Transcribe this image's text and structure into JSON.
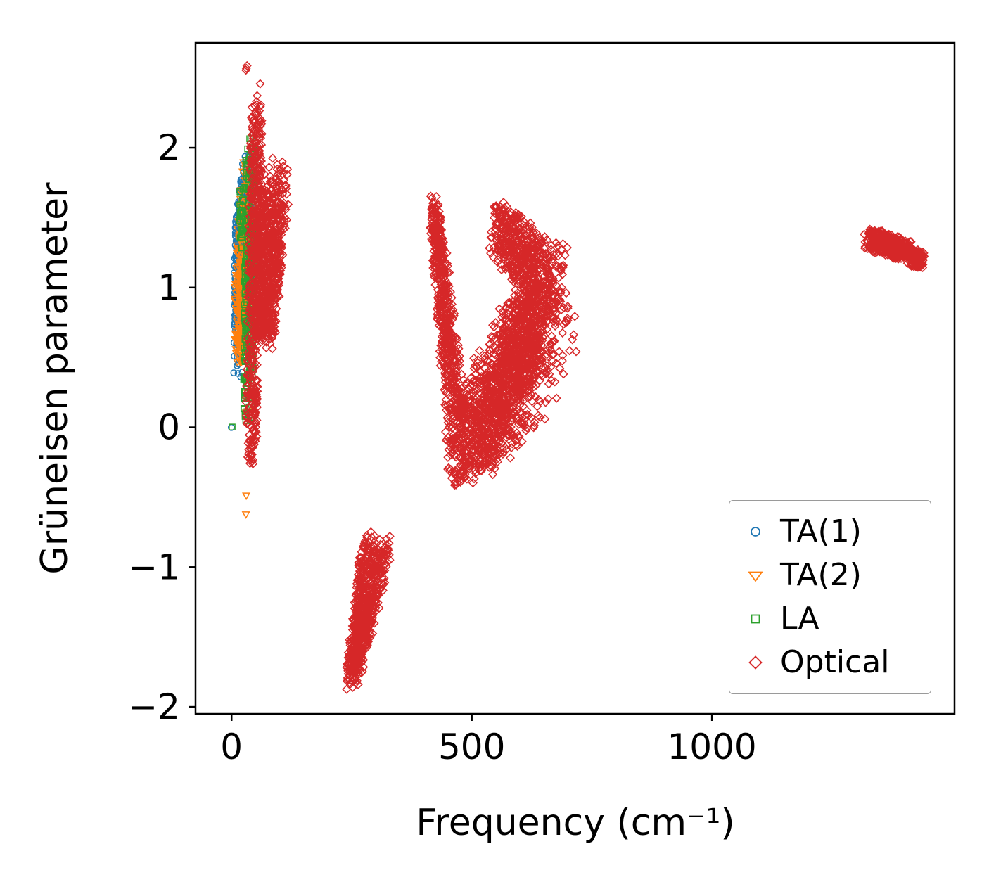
{
  "chart_data": {
    "type": "scatter",
    "title": "",
    "xlabel": "Frequency (cm⁻¹)",
    "ylabel": "Grüneisen parameter",
    "xlim": [
      -75,
      1505
    ],
    "ylim": [
      -2.05,
      2.75
    ],
    "xticks": [
      0,
      500,
      1000
    ],
    "xticklabels": [
      "0",
      "500",
      "1000"
    ],
    "yticks": [
      -2,
      -1,
      0,
      1,
      2
    ],
    "yticklabels": [
      "−2",
      "−1",
      "0",
      "1",
      "2"
    ],
    "grid": false,
    "seed": 42,
    "legend": {
      "position": "lower right"
    },
    "series": [
      {
        "name": "TA(1)",
        "marker": "circle",
        "color": "#1f77b4",
        "clusters": [
          {
            "n": 650,
            "t0": {
              "x": [
                4,
                20
              ],
              "y": [
                0.72,
                1.38
              ]
            },
            "t1": {
              "x": [
                22,
                48
              ],
              "y": [
                1.0,
                1.98
              ]
            }
          },
          {
            "n": 70,
            "t0": {
              "x": [
                3,
                18
              ],
              "y": [
                0.3,
                0.85
              ]
            },
            "t1": {
              "x": [
                10,
                30
              ],
              "y": [
                0.5,
                1.0
              ]
            }
          },
          {
            "n": 1,
            "t0": {
              "x": [
                -2,
                2
              ],
              "y": [
                -0.02,
                0.02
              ]
            },
            "t1": {
              "x": [
                -2,
                2
              ],
              "y": [
                -0.02,
                0.02
              ]
            }
          }
        ]
      },
      {
        "name": "TA(2)",
        "marker": "triangle-down",
        "color": "#ff7f0e",
        "clusters": [
          {
            "n": 320,
            "t0": {
              "x": [
                5,
                25
              ],
              "y": [
                0.4,
                1.0
              ]
            },
            "t1": {
              "x": [
                20,
                45
              ],
              "y": [
                0.9,
                2.02
              ]
            }
          },
          {
            "n": 40,
            "t0": {
              "x": [
                6,
                20
              ],
              "y": [
                0.42,
                0.62
              ]
            },
            "t1": {
              "x": [
                25,
                42
              ],
              "y": [
                0.5,
                0.8
              ]
            }
          },
          {
            "n": 6,
            "t0": {
              "x": [
                25,
                40
              ],
              "y": [
                0.05,
                0.25
              ]
            },
            "t1": {
              "x": [
                28,
                44
              ],
              "y": [
                0.1,
                0.3
              ]
            }
          },
          {
            "n": 2,
            "t0": {
              "x": [
                28,
                32
              ],
              "y": [
                -0.52,
                -0.45
              ]
            },
            "t1": {
              "x": [
                29,
                34
              ],
              "y": [
                -0.65,
                -0.58
              ]
            }
          }
        ]
      },
      {
        "name": "LA",
        "marker": "square",
        "color": "#2ca02c",
        "clusters": [
          {
            "n": 260,
            "t0": {
              "x": [
                24,
                44
              ],
              "y": [
                -0.05,
                0.3
              ]
            },
            "t1": {
              "x": [
                28,
                48
              ],
              "y": [
                1.9,
                2.12
              ]
            }
          },
          {
            "n": 25,
            "t0": {
              "x": [
                15,
                23
              ],
              "y": [
                1.25,
                1.45
              ]
            },
            "t1": {
              "x": [
                17,
                25
              ],
              "y": [
                1.55,
                1.75
              ]
            }
          },
          {
            "n": 1,
            "t0": {
              "x": [
                -2,
                2
              ],
              "y": [
                -0.03,
                0.01
              ]
            },
            "t1": {
              "x": [
                -2,
                2
              ],
              "y": [
                -0.03,
                0.01
              ]
            }
          }
        ]
      },
      {
        "name": "Optical",
        "marker": "diamond",
        "color": "#d62728",
        "clusters": [
          {
            "n": 450,
            "t0": {
              "x": [
                30,
                52
              ],
              "y": [
                -0.22,
                0.15
              ]
            },
            "t1": {
              "x": [
                40,
                64
              ],
              "y": [
                2.15,
                2.48
              ]
            }
          },
          {
            "n": 750,
            "t0": {
              "x": [
                48,
                88
              ],
              "y": [
                0.55,
                0.8
              ]
            },
            "t1": {
              "x": [
                58,
                118
              ],
              "y": [
                1.5,
                1.95
              ]
            }
          },
          {
            "n": 3,
            "t0": {
              "x": [
                29,
                36
              ],
              "y": [
                2.5,
                2.56
              ]
            },
            "t1": {
              "x": [
                30,
                37
              ],
              "y": [
                2.56,
                2.62
              ]
            }
          },
          {
            "n": 25,
            "t0": {
              "x": [
                33,
                50
              ],
              "y": [
                -0.3,
                -0.15
              ]
            },
            "t1": {
              "x": [
                36,
                54
              ],
              "y": [
                -0.1,
                0.05
              ]
            }
          },
          {
            "n": 650,
            "t0": {
              "x": [
                238,
                264
              ],
              "y": [
                -1.88,
                -1.7
              ]
            },
            "t1": {
              "x": [
                270,
                334
              ],
              "y": [
                -0.97,
                -0.74
              ]
            }
          },
          {
            "n": 600,
            "t0": {
              "x": [
                413,
                431
              ],
              "y": [
                1.42,
                1.67
              ]
            },
            "t1": {
              "x": [
                452,
                494
              ],
              "y": [
                -0.45,
                0.15
              ]
            }
          },
          {
            "n": 950,
            "t0": {
              "x": [
                452,
                530
              ],
              "y": [
                -0.42,
                0.15
              ]
            },
            "t1": {
              "x": [
                560,
                655
              ],
              "y": [
                0.05,
                0.9
              ]
            }
          },
          {
            "n": 550,
            "t0": {
              "x": [
                535,
                565
              ],
              "y": [
                1.25,
                1.62
              ]
            },
            "t1": {
              "x": [
                640,
                708
              ],
              "y": [
                0.72,
                1.28
              ]
            }
          },
          {
            "n": 500,
            "t0": {
              "x": [
                552,
                600
              ],
              "y": [
                0.15,
                0.85
              ]
            },
            "t1": {
              "x": [
                618,
                692
              ],
              "y": [
                0.45,
                1.18
              ]
            }
          },
          {
            "n": 18,
            "t0": {
              "x": [
                628,
                652
              ],
              "y": [
                -0.12,
                0.1
              ]
            },
            "t1": {
              "x": [
                688,
                726
              ],
              "y": [
                0.55,
                0.85
              ]
            }
          },
          {
            "n": 380,
            "t0": {
              "x": [
                1315,
                1342
              ],
              "y": [
                1.27,
                1.43
              ]
            },
            "t1": {
              "x": [
                1392,
                1416
              ],
              "y": [
                1.19,
                1.33
              ]
            }
          },
          {
            "n": 130,
            "t0": {
              "x": [
                1406,
                1420
              ],
              "y": [
                1.16,
                1.3
              ]
            },
            "t1": {
              "x": [
                1428,
                1444
              ],
              "y": [
                1.13,
                1.25
              ]
            }
          }
        ]
      }
    ]
  }
}
